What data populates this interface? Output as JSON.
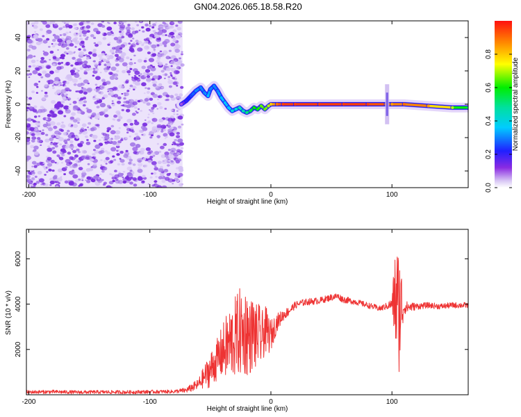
{
  "title": "GN04.2026.065.18.58.R20",
  "chart_data": [
    {
      "type": "heatmap",
      "panel": "top",
      "xlabel": "Height of straight line (km)",
      "ylabel": "Frequency (Hz)",
      "xlim": [
        -202,
        163
      ],
      "ylim": [
        -50,
        50
      ],
      "xticks": [
        -200,
        -100,
        0,
        100
      ],
      "yticks": [
        -40,
        -20,
        0,
        20,
        40
      ],
      "noise_region": {
        "x_start": -202,
        "x_end": -73,
        "color": "#7a2ee0"
      },
      "ridge": {
        "x": [
          -74,
          -70,
          -66,
          -62,
          -58,
          -55,
          -52,
          -50,
          -47,
          -44,
          -41,
          -38,
          -35,
          -32,
          -29,
          -26,
          -23,
          -20,
          -17,
          -14,
          -11,
          -8,
          -5,
          -2,
          0,
          5,
          10,
          20,
          40,
          60,
          80,
          95,
          100,
          110,
          130,
          150,
          163
        ],
        "y": [
          0,
          2,
          5,
          8,
          10,
          7,
          5,
          9,
          11,
          8,
          4,
          1,
          -2,
          -4,
          -3,
          -2,
          -4,
          -5,
          -4,
          -2,
          -3,
          -1,
          -3,
          -1,
          0,
          0,
          0,
          0,
          0,
          0,
          0,
          0,
          0,
          0,
          -1,
          -2,
          -2
        ],
        "amplitude": [
          0.1,
          0.2,
          0.25,
          0.3,
          0.3,
          0.3,
          0.35,
          0.3,
          0.3,
          0.3,
          0.35,
          0.35,
          0.35,
          0.4,
          0.4,
          0.45,
          0.45,
          0.5,
          0.55,
          0.6,
          0.6,
          0.65,
          0.65,
          0.7,
          0.8,
          0.9,
          0.95,
          0.95,
          0.95,
          0.95,
          0.95,
          0.9,
          0.85,
          0.9,
          0.85,
          0.7,
          0.5
        ]
      },
      "colorbar": {
        "label": "Normalized spectral amplitude",
        "min": 0,
        "max": 1,
        "ticks": [
          "0.0",
          "0.2",
          "0.4",
          "0.6",
          "0.8"
        ]
      }
    },
    {
      "type": "line",
      "panel": "bottom",
      "xlabel": "Height of straight line (km)",
      "ylabel": "SNR (10 * v/v)",
      "xlim": [
        -202,
        163
      ],
      "ylim": [
        0,
        7300
      ],
      "xticks": [
        -200,
        -100,
        0,
        100
      ],
      "yticks": [
        2000,
        4000,
        6000
      ],
      "color": "#ee3333",
      "x": [
        -202,
        -180,
        -160,
        -140,
        -120,
        -100,
        -80,
        -70,
        -60,
        -55,
        -50,
        -45,
        -40,
        -35,
        -30,
        -25,
        -22,
        -20,
        -18,
        -15,
        -12,
        -10,
        -8,
        -5,
        -2,
        0,
        5,
        10,
        15,
        20,
        25,
        30,
        40,
        50,
        55,
        60,
        70,
        80,
        90,
        95,
        100,
        103,
        105,
        107,
        110,
        120,
        130,
        140,
        150,
        163
      ],
      "y": [
        120,
        130,
        110,
        120,
        115,
        130,
        140,
        200,
        450,
        800,
        1100,
        1500,
        1900,
        2200,
        2500,
        2800,
        2600,
        3000,
        2400,
        2800,
        2500,
        2700,
        2400,
        2900,
        2700,
        2600,
        3200,
        3500,
        3700,
        3950,
        4050,
        4100,
        4150,
        4300,
        4350,
        4200,
        4100,
        3950,
        3800,
        3900,
        4000,
        4300,
        3600,
        3900,
        3850,
        3900,
        3950,
        3900,
        3950,
        3950
      ],
      "amplitude": [
        80,
        80,
        80,
        80,
        80,
        80,
        80,
        120,
        250,
        500,
        800,
        900,
        1200,
        1600,
        1800,
        2000,
        1800,
        2200,
        1600,
        1700,
        1500,
        1400,
        1200,
        1100,
        900,
        700,
        400,
        250,
        200,
        160,
        150,
        150,
        150,
        150,
        150,
        150,
        130,
        130,
        130,
        150,
        250,
        2600,
        3100,
        2400,
        300,
        150,
        130,
        130,
        130,
        130
      ]
    }
  ]
}
